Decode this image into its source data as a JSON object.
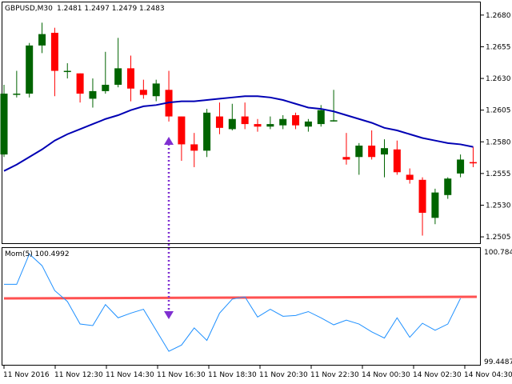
{
  "header": {
    "symbol_label": "GBPUSD,M30",
    "ohlc_label": "1.2481 1.2497 1.2479 1.2483"
  },
  "indicator": {
    "label": "Mom(5) 100.4992",
    "scale_high": "100.7846",
    "scale_low": "99.4487"
  },
  "colors": {
    "bull": "#006400",
    "bear": "#ff0000",
    "ma": "#0000b4",
    "momentum": "#1e90ff",
    "level": "#ff3333",
    "arrow": "#7f2fd1",
    "border": "#000000"
  },
  "chart_data": [
    {
      "type": "candlestick",
      "title": "",
      "xlabel": "",
      "ylabel": "",
      "ylim": [
        1.25,
        1.269
      ],
      "y_ticks": [
        "1.2680",
        "1.2655",
        "1.2630",
        "1.2605",
        "1.2580",
        "1.2555",
        "1.2530",
        "1.2505"
      ],
      "x_ticks": [
        "11 Nov 2016",
        "11 Nov 12:30",
        "11 Nov 14:30",
        "11 Nov 16:30",
        "11 Nov 18:30",
        "11 Nov 20:30",
        "11 Nov 22:30",
        "14 Nov 00:30",
        "14 Nov 02:30",
        "14 Nov 04:30"
      ],
      "candles": [
        {
          "o": 1.257,
          "h": 1.2625,
          "l": 1.2568,
          "c": 1.2618
        },
        {
          "o": 1.2618,
          "h": 1.2636,
          "l": 1.2615,
          "c": 1.2618
        },
        {
          "o": 1.2618,
          "h": 1.2658,
          "l": 1.2615,
          "c": 1.2656
        },
        {
          "o": 1.2656,
          "h": 1.2674,
          "l": 1.265,
          "c": 1.2665
        },
        {
          "o": 1.2666,
          "h": 1.267,
          "l": 1.2616,
          "c": 1.2636
        },
        {
          "o": 1.2636,
          "h": 1.2642,
          "l": 1.263,
          "c": 1.2636
        },
        {
          "o": 1.2634,
          "h": 1.2634,
          "l": 1.2611,
          "c": 1.2618
        },
        {
          "o": 1.2614,
          "h": 1.263,
          "l": 1.2607,
          "c": 1.262
        },
        {
          "o": 1.262,
          "h": 1.2651,
          "l": 1.2618,
          "c": 1.2625
        },
        {
          "o": 1.2625,
          "h": 1.2662,
          "l": 1.2623,
          "c": 1.2638
        },
        {
          "o": 1.2638,
          "h": 1.2648,
          "l": 1.2612,
          "c": 1.2622
        },
        {
          "o": 1.2621,
          "h": 1.2629,
          "l": 1.2614,
          "c": 1.2617
        },
        {
          "o": 1.2616,
          "h": 1.2629,
          "l": 1.2612,
          "c": 1.2626
        },
        {
          "o": 1.2621,
          "h": 1.2636,
          "l": 1.2596,
          "c": 1.26
        },
        {
          "o": 1.26,
          "h": 1.26,
          "l": 1.2565,
          "c": 1.2578
        },
        {
          "o": 1.2578,
          "h": 1.2587,
          "l": 1.256,
          "c": 1.2573
        },
        {
          "o": 1.2573,
          "h": 1.2606,
          "l": 1.2568,
          "c": 1.2603
        },
        {
          "o": 1.26,
          "h": 1.2611,
          "l": 1.2586,
          "c": 1.2591
        },
        {
          "o": 1.259,
          "h": 1.261,
          "l": 1.2589,
          "c": 1.2598
        },
        {
          "o": 1.26,
          "h": 1.2611,
          "l": 1.259,
          "c": 1.2594
        },
        {
          "o": 1.2594,
          "h": 1.2598,
          "l": 1.2588,
          "c": 1.2592
        },
        {
          "o": 1.2592,
          "h": 1.26,
          "l": 1.259,
          "c": 1.2594
        },
        {
          "o": 1.2593,
          "h": 1.2601,
          "l": 1.259,
          "c": 1.2598
        },
        {
          "o": 1.2601,
          "h": 1.2603,
          "l": 1.259,
          "c": 1.2593
        },
        {
          "o": 1.2592,
          "h": 1.2598,
          "l": 1.2588,
          "c": 1.2596
        },
        {
          "o": 1.2594,
          "h": 1.2609,
          "l": 1.2592,
          "c": 1.2605
        },
        {
          "o": 1.2597,
          "h": 1.2621,
          "l": 1.2596,
          "c": 1.2597
        },
        {
          "o": 1.2568,
          "h": 1.2587,
          "l": 1.2562,
          "c": 1.2566
        },
        {
          "o": 1.2568,
          "h": 1.2579,
          "l": 1.2554,
          "c": 1.2577
        },
        {
          "o": 1.2577,
          "h": 1.2589,
          "l": 1.2566,
          "c": 1.2568
        },
        {
          "o": 1.257,
          "h": 1.2582,
          "l": 1.2552,
          "c": 1.2575
        },
        {
          "o": 1.2574,
          "h": 1.2581,
          "l": 1.2554,
          "c": 1.2556
        },
        {
          "o": 1.2554,
          "h": 1.2559,
          "l": 1.2547,
          "c": 1.255
        },
        {
          "o": 1.255,
          "h": 1.2552,
          "l": 1.2506,
          "c": 1.2524
        },
        {
          "o": 1.252,
          "h": 1.2543,
          "l": 1.2515,
          "c": 1.254
        },
        {
          "o": 1.2538,
          "h": 1.2552,
          "l": 1.2535,
          "c": 1.2551
        },
        {
          "o": 1.2555,
          "h": 1.257,
          "l": 1.2552,
          "c": 1.2566
        },
        {
          "o": 1.2564,
          "h": 1.2576,
          "l": 1.256,
          "c": 1.2563
        }
      ],
      "moving_average": [
        1.2557,
        1.2562,
        1.2568,
        1.2574,
        1.2581,
        1.2586,
        1.259,
        1.2594,
        1.2598,
        1.2601,
        1.2605,
        1.2608,
        1.2609,
        1.2611,
        1.2612,
        1.2612,
        1.2613,
        1.2614,
        1.2615,
        1.2616,
        1.2616,
        1.2615,
        1.2613,
        1.261,
        1.2607,
        1.2606,
        1.2604,
        1.2601,
        1.2598,
        1.2595,
        1.2591,
        1.2589,
        1.2586,
        1.2583,
        1.2581,
        1.2579,
        1.2578,
        1.2576
      ]
    },
    {
      "type": "line",
      "title": "",
      "xlabel": "",
      "ylabel": "",
      "ylim": [
        99.4487,
        100.7846
      ],
      "series": [
        {
          "values": [
            100.4,
            100.4,
            100.79,
            100.64,
            100.32,
            100.18,
            99.89,
            99.87,
            100.14,
            99.97,
            100.03,
            100.08,
            99.81,
            99.54,
            99.62,
            99.84,
            99.68,
            100.03,
            100.21,
            100.24,
            99.98,
            100.08,
            99.99,
            100.0,
            100.05,
            99.97,
            99.88,
            99.94,
            99.89,
            99.79,
            99.71,
            99.97,
            99.72,
            99.9,
            99.81,
            99.89,
            100.22
          ]
        }
      ],
      "levels": [
        100.24
      ]
    }
  ]
}
